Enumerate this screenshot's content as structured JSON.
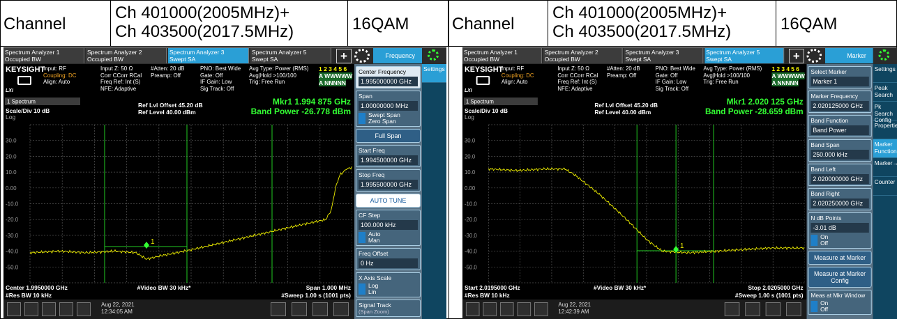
{
  "panels": [
    {
      "header": {
        "label": "Channel",
        "channel": [
          "Ch 401000(2005MHz)+",
          "Ch 403500(2017.5MHz)"
        ],
        "modulation": "16QAM"
      },
      "tabs": [
        {
          "name": "Spectrum Analyzer 1",
          "mode": "Occupied BW"
        },
        {
          "name": "Spectrum Analyzer 2",
          "mode": "Occupied BW"
        },
        {
          "name": "Spectrum Analyzer 3",
          "mode": "Swept SA",
          "active": true
        },
        {
          "name": "Spectrum Analyzer 5",
          "mode": "Swept SA"
        }
      ],
      "add": "+",
      "menu_title": "Frequency",
      "brand": "KEYSIGHT",
      "lxi": "LXI",
      "status": [
        [
          "Input: RF",
          "Coupling: DC",
          "Align: Auto"
        ],
        [
          "Input Z: 50 Ω",
          "Corr CCorr RCal",
          "Freq Ref: Int (S)",
          "NFE: Adaptive"
        ],
        [
          "#Atten: 20 dB",
          "Preamp: Off"
        ],
        [
          "PNO: Best Wide",
          "Gate: Off",
          "IF Gain: Low",
          "Sig Track: Off"
        ],
        [
          "Avg Type: Power (RMS)",
          "Avg|Hold >100/100",
          "Trig: Free Run"
        ]
      ],
      "trace_status": [
        "1 2 3 4 5 6",
        "A WWWWW",
        "A NNNNN"
      ],
      "plot": {
        "window": "1 Spectrum",
        "scale": "Scale/Div 10 dB",
        "log": "Log",
        "ref_offset": "Ref Lvl Offset 45.20 dB",
        "ref_level": "Ref Level 40.00 dBm",
        "marker": "Mkr1  1.994 875 GHz",
        "band_power": "Band Power -26.778 dBm",
        "y_labels": [
          "30.0",
          "20.0",
          "10.0",
          "0.00",
          "-10.0",
          "-20.0",
          "-30.0",
          "-40.0",
          "-50.0"
        ],
        "marker_label": "1",
        "footer": [
          [
            "Center 1.9950000 GHz",
            "#Video BW 30 kHz*",
            "Span 1.000 MHz"
          ],
          [
            "#Res BW 10 kHz",
            "#Sweep 1.00 s (1001 pts)"
          ]
        ]
      },
      "menu": [
        {
          "label": "Center Frequency",
          "value": "1.995000000 GHz",
          "active": true
        },
        {
          "label": "Span",
          "value": "1.00000000 MHz",
          "toggle": [
            "Swept Span",
            "Zero Span"
          ]
        },
        {
          "button": "Full Span"
        },
        {
          "label": "Start Freq",
          "value": "1.994500000 GHz"
        },
        {
          "label": "Stop Freq",
          "value": "1.995500000 GHz"
        },
        {
          "button": "AUTO TUNE",
          "bright": true
        },
        {
          "label": "CF Step",
          "value": "100.000 kHz",
          "toggle": [
            "Auto",
            "Man"
          ]
        },
        {
          "label": "Freq Offset",
          "value": "0 Hz"
        },
        {
          "label": "X Axis Scale",
          "toggle": [
            "Log",
            "Lin"
          ]
        },
        {
          "label": "Signal Track",
          "note": "(Span Zoom)"
        }
      ],
      "side_tabs": [
        {
          "label": "Settings",
          "active": true
        }
      ],
      "date": "Aug 22, 2021",
      "time": "12:34:05 AM"
    },
    {
      "header": {
        "label": "Channel",
        "channel": [
          "Ch 401000(2005MHz)+",
          "Ch 403500(2017.5MHz)"
        ],
        "modulation": "16QAM"
      },
      "tabs": [
        {
          "name": "Spectrum Analyzer 1",
          "mode": "Occupied BW"
        },
        {
          "name": "Spectrum Analyzer 2",
          "mode": "Occupied BW"
        },
        {
          "name": "Spectrum Analyzer 3",
          "mode": "Swept SA"
        },
        {
          "name": "Spectrum Analyzer 5",
          "mode": "Swept SA",
          "active": true
        }
      ],
      "add": "+",
      "menu_title": "Marker",
      "brand": "KEYSIGHT",
      "lxi": "LXI",
      "status": [
        [
          "Input: RF",
          "Coupling: DC",
          "Align: Auto"
        ],
        [
          "Input Z: 50 Ω",
          "Corr CCorr RCal",
          "Freq Ref: Int (S)",
          "NFE: Adaptive"
        ],
        [
          "#Atten: 20 dB",
          "Preamp: Off"
        ],
        [
          "PNO: Best Wide",
          "Gate: Off",
          "IF Gain: Low",
          "Sig Track: Off"
        ],
        [
          "Avg Type: Power (RMS)",
          "Avg|Hold >100/100",
          "Trig: Free Run"
        ]
      ],
      "trace_status": [
        "1 2 3 4 5 6",
        "A WWWWW",
        "A NNNNN"
      ],
      "plot": {
        "window": "1 Spectrum",
        "scale": "Scale/Div 10 dB",
        "log": "Log",
        "ref_offset": "Ref Lvl Offset 45.20 dB",
        "ref_level": "Ref Level 40.00 dBm",
        "marker": "Mkr1  2.020 125 GHz",
        "band_power": "Band Power -28.659 dBm",
        "y_labels": [
          "30.0",
          "20.0",
          "10.0",
          "0.00",
          "-10.0",
          "-20.0",
          "-30.0",
          "-40.0",
          "-50.0"
        ],
        "marker_label": "1",
        "footer": [
          [
            "Start 2.0195000 GHz",
            "#Video BW 30 kHz*",
            "Stop 2.0205000 GHz"
          ],
          [
            "#Res BW 10 kHz",
            "#Sweep 1.00 s (1001 pts)"
          ]
        ]
      },
      "menu": [
        {
          "label": "Select Marker",
          "value": "Marker 1"
        },
        {
          "label": "Marker Frequency",
          "value": "2.020125000 GHz"
        },
        {
          "label": "Band Function",
          "value": "Band Power"
        },
        {
          "label": "Band Span",
          "value": "250.000 kHz"
        },
        {
          "label": "Band Left",
          "value": "2.020000000 GHz"
        },
        {
          "label": "Band Right",
          "value": "2.020250000 GHz"
        },
        {
          "label": "N dB Points",
          "value": "-3.01 dB",
          "toggle": [
            "On",
            "Off"
          ]
        },
        {
          "button": "Measure at Marker"
        },
        {
          "button": "Measure at Marker Config"
        },
        {
          "label": "Meas at Mkr Window",
          "toggle": [
            "On",
            "Off"
          ]
        }
      ],
      "side_tabs": [
        {
          "label": "Settings"
        },
        {
          "label": "Peak Search"
        },
        {
          "label": "Pk Search Config"
        },
        {
          "label": "Properties"
        },
        {
          "label": "Marker Function",
          "active": true
        },
        {
          "label": "Marker→"
        },
        {
          "label": "Counter"
        }
      ],
      "date": "Aug 22, 2021",
      "time": "12:42:39 AM"
    }
  ]
}
